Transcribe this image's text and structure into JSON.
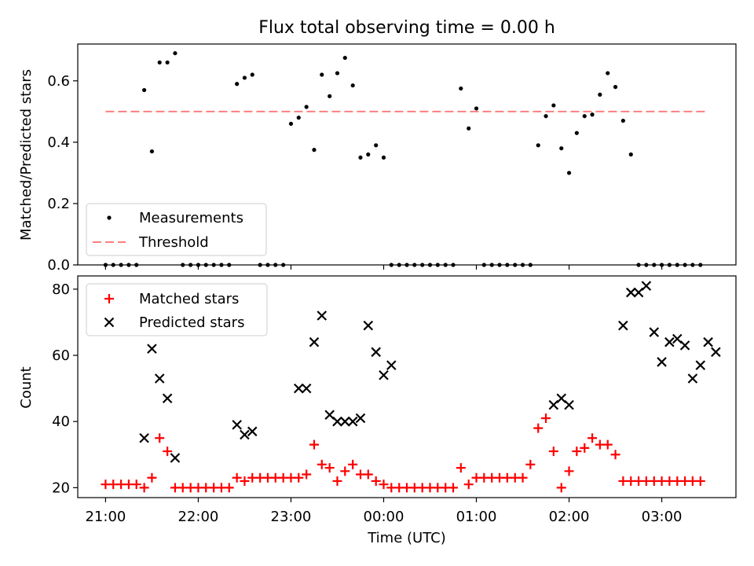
{
  "title": "Flux total observing time = 0.00 h",
  "x_tick_labels": [
    "21:00",
    "22:00",
    "23:00",
    "00:00",
    "01:00",
    "02:00",
    "03:00"
  ],
  "chart_data": [
    {
      "type": "scatter",
      "title": "Flux total observing time = 0.00 h",
      "ylabel": "Matched/Predicted stars",
      "ylim": [
        0,
        0.72
      ],
      "yticks": [
        0.0,
        0.2,
        0.4,
        0.6
      ],
      "ytick_labels": [
        "0.0",
        "0.2",
        "0.4",
        "0.6"
      ],
      "xlim_hours": [
        20.7,
        27.8
      ],
      "legend_placement": "lower-left",
      "legend": [
        {
          "label": "Measurements",
          "marker": "dot",
          "color": "#000000"
        },
        {
          "label": "Threshold",
          "marker": "dashed-line",
          "color": "#ff7f7f"
        }
      ],
      "threshold": {
        "value": 0.5,
        "x_start_hours": 21.0,
        "x_end_hours": 27.5
      },
      "series": [
        {
          "name": "Measurements",
          "color": "#000000",
          "x_hours": [
            21.0,
            21.083,
            21.167,
            21.25,
            21.333,
            21.417,
            21.5,
            21.583,
            21.667,
            21.75,
            21.833,
            21.917,
            22.0,
            22.083,
            22.167,
            22.25,
            22.333,
            22.417,
            22.5,
            22.583,
            22.667,
            22.75,
            22.833,
            22.917,
            23.0,
            23.083,
            23.167,
            23.25,
            23.333,
            23.417,
            23.5,
            23.583,
            23.667,
            23.75,
            23.833,
            23.917,
            24.0,
            24.083,
            24.167,
            24.25,
            24.333,
            24.417,
            24.5,
            24.583,
            24.667,
            24.75,
            24.833,
            24.917,
            25.0,
            25.083,
            25.167,
            25.25,
            25.333,
            25.417,
            25.5,
            25.583,
            25.667,
            25.75,
            25.833,
            25.917,
            26.0,
            26.083,
            26.167,
            26.25,
            26.333,
            26.417,
            26.5,
            26.583,
            26.667,
            26.75,
            26.833,
            26.917,
            27.0,
            27.083,
            27.167,
            27.25,
            27.333,
            27.417
          ],
          "y": [
            0,
            0,
            0,
            0,
            0,
            0.57,
            0.37,
            0.66,
            0.66,
            0.69,
            0,
            0,
            0,
            0,
            0,
            0,
            0,
            0.59,
            0.61,
            0.62,
            0,
            0,
            0,
            0,
            0.46,
            0.48,
            0.515,
            0.375,
            0.62,
            0.55,
            0.625,
            0.675,
            0.585,
            0.35,
            0.36,
            0.39,
            0.35,
            0,
            0,
            0,
            0,
            0,
            0,
            0,
            0,
            0,
            0.575,
            0.445,
            0.51,
            0,
            0,
            0,
            0,
            0,
            0,
            0,
            0.39,
            0.485,
            0.52,
            0.38,
            0.3,
            0.43,
            0.485,
            0.49,
            0.555,
            0.625,
            0.58,
            0.47,
            0.36,
            0,
            0,
            0,
            0,
            0,
            0,
            0,
            0,
            0
          ]
        }
      ]
    },
    {
      "type": "scatter",
      "xlabel": "Time (UTC)",
      "ylabel": "Count",
      "ylim": [
        17,
        84
      ],
      "yticks": [
        20,
        40,
        60,
        80
      ],
      "ytick_labels": [
        "20",
        "40",
        "60",
        "80"
      ],
      "xlim_hours": [
        20.7,
        27.8
      ],
      "legend_placement": "upper-left",
      "legend": [
        {
          "label": "Matched stars",
          "marker": "plus",
          "color": "#ff0000"
        },
        {
          "label": "Predicted stars",
          "marker": "x",
          "color": "#000000"
        }
      ],
      "series": [
        {
          "name": "Matched stars",
          "marker": "plus",
          "color": "#ff0000",
          "x_hours": [
            21.0,
            21.083,
            21.167,
            21.25,
            21.333,
            21.417,
            21.5,
            21.583,
            21.667,
            21.75,
            21.833,
            21.917,
            22.0,
            22.083,
            22.167,
            22.25,
            22.333,
            22.417,
            22.5,
            22.583,
            22.667,
            22.75,
            22.833,
            22.917,
            23.0,
            23.083,
            23.167,
            23.25,
            23.333,
            23.417,
            23.5,
            23.583,
            23.667,
            23.75,
            23.833,
            23.917,
            24.0,
            24.083,
            24.167,
            24.25,
            24.333,
            24.417,
            24.5,
            24.583,
            24.667,
            24.75,
            24.833,
            24.917,
            25.0,
            25.083,
            25.167,
            25.25,
            25.333,
            25.417,
            25.5,
            25.583,
            25.667,
            25.75,
            25.833,
            25.917,
            26.0,
            26.083,
            26.167,
            26.25,
            26.333,
            26.417,
            26.5,
            26.583,
            26.667,
            26.75,
            26.833,
            26.917,
            27.0,
            27.083,
            27.167,
            27.25,
            27.333,
            27.417
          ],
          "y": [
            21,
            21,
            21,
            21,
            21,
            20,
            23,
            35,
            31,
            20,
            20,
            20,
            20,
            20,
            20,
            20,
            20,
            23,
            22,
            23,
            23,
            23,
            23,
            23,
            23,
            23,
            24,
            33,
            27,
            26,
            22,
            25,
            27,
            24,
            24,
            22,
            21,
            20,
            20,
            20,
            20,
            20,
            20,
            20,
            20,
            20,
            26,
            21,
            23,
            23,
            23,
            23,
            23,
            23,
            23,
            27,
            38,
            41,
            31,
            20,
            25,
            31,
            32,
            35,
            33,
            33,
            30,
            22,
            22,
            22,
            22,
            22,
            22,
            22,
            22,
            22,
            22,
            22
          ]
        },
        {
          "name": "Predicted stars",
          "marker": "x",
          "color": "#000000",
          "x_hours": [
            21.417,
            21.5,
            21.583,
            21.667,
            21.75,
            22.417,
            22.5,
            22.583,
            23.083,
            23.167,
            23.25,
            23.333,
            23.417,
            23.5,
            23.583,
            23.667,
            23.75,
            23.833,
            23.917,
            24.0,
            24.083,
            25.833,
            25.917,
            26.0,
            26.583,
            26.667,
            26.75,
            26.833,
            26.917,
            27.0,
            27.083,
            27.167,
            27.25,
            27.333,
            27.417,
            27.5,
            27.583
          ],
          "y": [
            35,
            62,
            53,
            47,
            29,
            39,
            36,
            37,
            50,
            50,
            64,
            72,
            42,
            40,
            40,
            40,
            41,
            69,
            61,
            54,
            57,
            45,
            47,
            45,
            69,
            79,
            79,
            81,
            67,
            58,
            64,
            65,
            63,
            53,
            57,
            64,
            61
          ]
        }
      ]
    }
  ]
}
